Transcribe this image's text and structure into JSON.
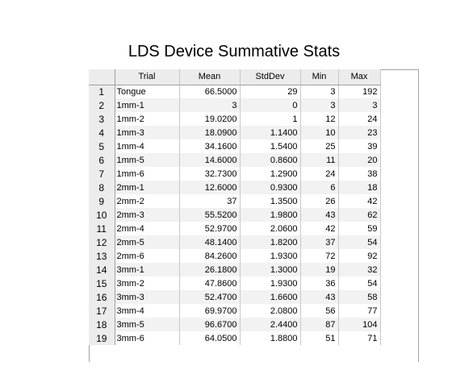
{
  "title": "LDS Device Summative Stats",
  "columns": [
    "Trial",
    "Mean",
    "StdDev",
    "Min",
    "Max"
  ],
  "rows": [
    {
      "n": "1",
      "trial": "Tongue",
      "mean": "66.5000",
      "std": "29",
      "min": "3",
      "max": "192"
    },
    {
      "n": "2",
      "trial": "1mm-1",
      "mean": "3",
      "std": "0",
      "min": "3",
      "max": "3"
    },
    {
      "n": "3",
      "trial": "1mm-2",
      "mean": "19.0200",
      "std": "1",
      "min": "12",
      "max": "24"
    },
    {
      "n": "4",
      "trial": "1mm-3",
      "mean": "18.0900",
      "std": "1.1400",
      "min": "10",
      "max": "23"
    },
    {
      "n": "5",
      "trial": "1mm-4",
      "mean": "34.1600",
      "std": "1.5400",
      "min": "25",
      "max": "39"
    },
    {
      "n": "6",
      "trial": "1mm-5",
      "mean": "14.6000",
      "std": "0.8600",
      "min": "11",
      "max": "20"
    },
    {
      "n": "7",
      "trial": "1mm-6",
      "mean": "32.7300",
      "std": "1.2900",
      "min": "24",
      "max": "38"
    },
    {
      "n": "8",
      "trial": "2mm-1",
      "mean": "12.6000",
      "std": "0.9300",
      "min": "6",
      "max": "18"
    },
    {
      "n": "9",
      "trial": "2mm-2",
      "mean": "37",
      "std": "1.3500",
      "min": "26",
      "max": "42"
    },
    {
      "n": "10",
      "trial": "2mm-3",
      "mean": "55.5200",
      "std": "1.9800",
      "min": "43",
      "max": "62"
    },
    {
      "n": "11",
      "trial": "2mm-4",
      "mean": "52.9700",
      "std": "2.0600",
      "min": "42",
      "max": "59"
    },
    {
      "n": "12",
      "trial": "2mm-5",
      "mean": "48.1400",
      "std": "1.8200",
      "min": "37",
      "max": "54"
    },
    {
      "n": "13",
      "trial": "2mm-6",
      "mean": "84.2600",
      "std": "1.9300",
      "min": "72",
      "max": "92"
    },
    {
      "n": "14",
      "trial": "3mm-1",
      "mean": "26.1800",
      "std": "1.3000",
      "min": "19",
      "max": "32"
    },
    {
      "n": "15",
      "trial": "3mm-2",
      "mean": "47.8600",
      "std": "1.9300",
      "min": "36",
      "max": "54"
    },
    {
      "n": "16",
      "trial": "3mm-3",
      "mean": "52.4700",
      "std": "1.6600",
      "min": "43",
      "max": "58"
    },
    {
      "n": "17",
      "trial": "3mm-4",
      "mean": "69.9700",
      "std": "2.0800",
      "min": "56",
      "max": "77"
    },
    {
      "n": "18",
      "trial": "3mm-5",
      "mean": "96.6700",
      "std": "2.4400",
      "min": "87",
      "max": "104"
    },
    {
      "n": "19",
      "trial": "3mm-6",
      "mean": "64.0500",
      "std": "1.8800",
      "min": "51",
      "max": "71"
    }
  ]
}
